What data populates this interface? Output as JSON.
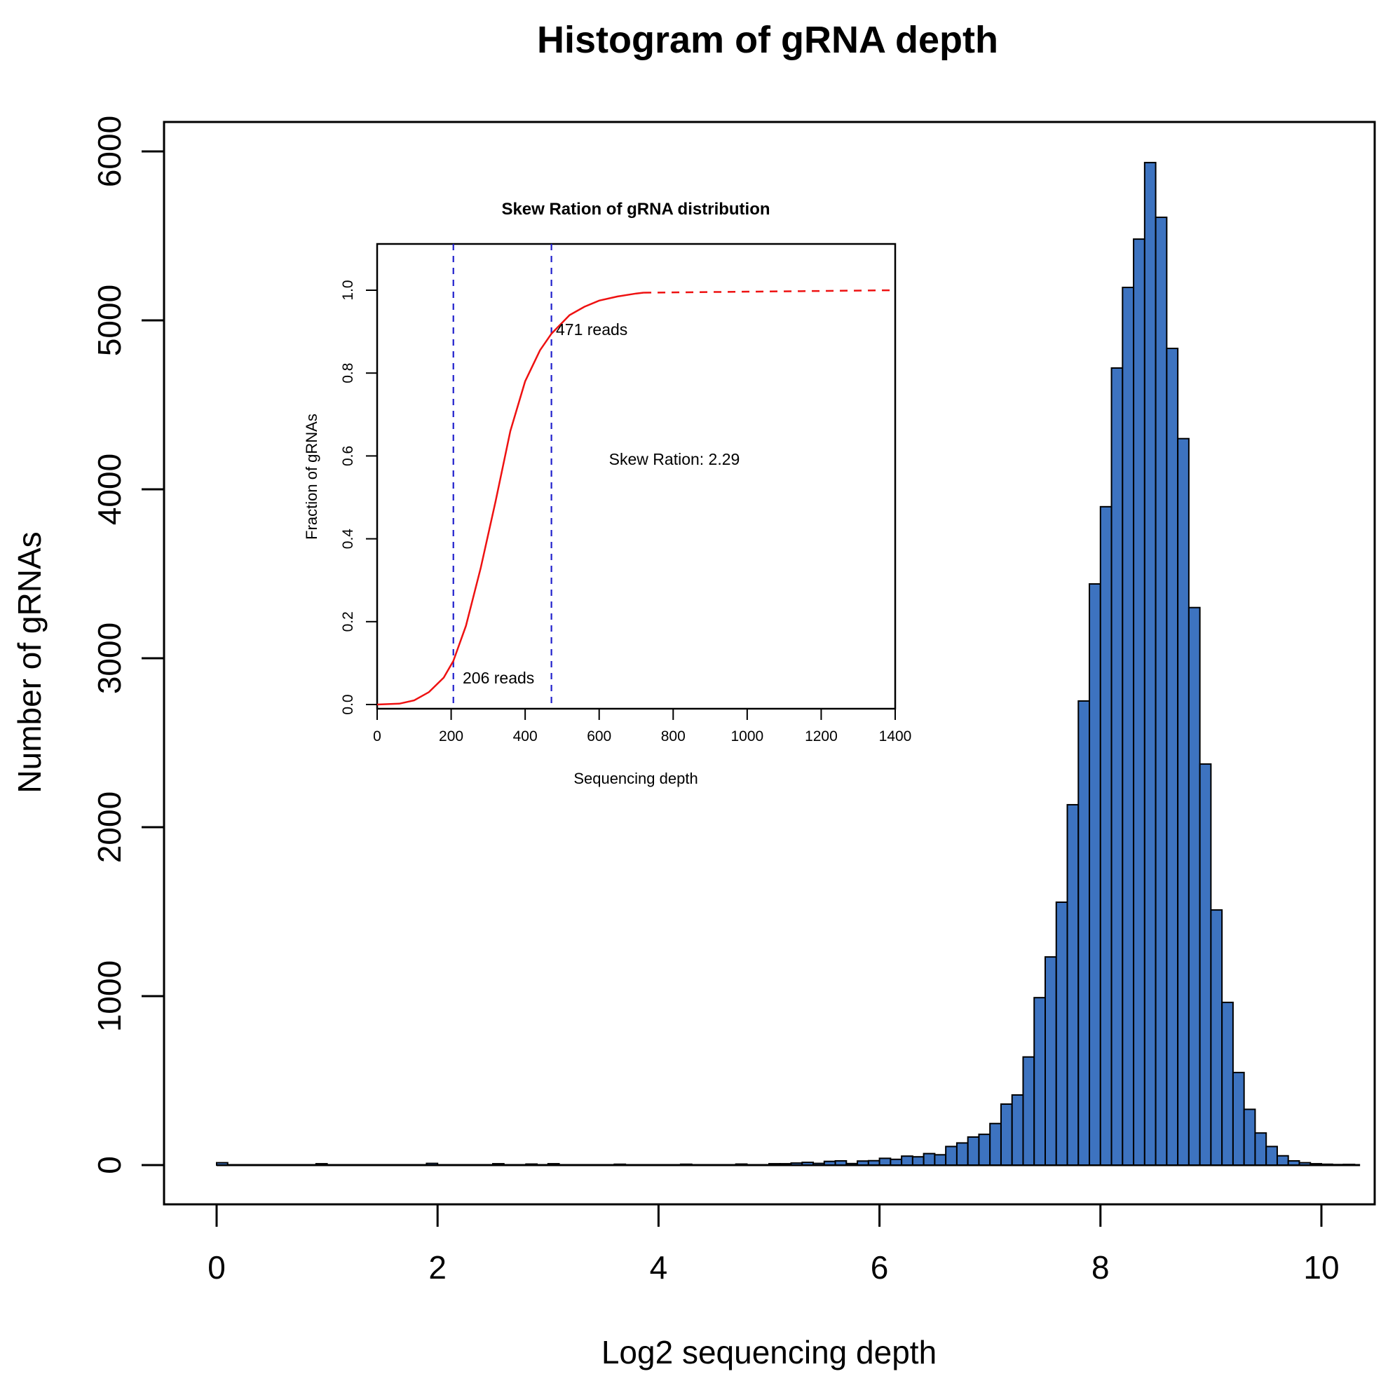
{
  "figure_title": "Histogram of gRNA depth",
  "chart_data": [
    {
      "id": "main_histogram",
      "type": "bar",
      "title": "Histogram of gRNA depth",
      "xlabel": "Log2 sequencing depth",
      "ylabel": "Number of gRNAs",
      "x_ticks": [
        0,
        2,
        4,
        6,
        8,
        10
      ],
      "y_ticks": [
        0,
        1000,
        2000,
        3000,
        4000,
        5000,
        6000
      ],
      "xlim": [
        -0.45,
        10.45
      ],
      "ylim": [
        0,
        6000
      ],
      "grid": "off",
      "legend": "none",
      "bin_width": 0.1,
      "bar_fill_color": "#3D73C0",
      "bar_border_color": "#000000",
      "baseline_extent": [
        0.0,
        10.35
      ],
      "bars": [
        {
          "x": 0.0,
          "count": 14
        },
        {
          "x": 0.9,
          "count": 8
        },
        {
          "x": 1.9,
          "count": 10
        },
        {
          "x": 2.5,
          "count": 8
        },
        {
          "x": 2.8,
          "count": 6
        },
        {
          "x": 3.0,
          "count": 8
        },
        {
          "x": 3.6,
          "count": 5
        },
        {
          "x": 4.2,
          "count": 5
        },
        {
          "x": 4.7,
          "count": 6
        },
        {
          "x": 5.0,
          "count": 8
        },
        {
          "x": 5.1,
          "count": 8
        },
        {
          "x": 5.2,
          "count": 12
        },
        {
          "x": 5.3,
          "count": 16
        },
        {
          "x": 5.4,
          "count": 10
        },
        {
          "x": 5.5,
          "count": 22
        },
        {
          "x": 5.6,
          "count": 25
        },
        {
          "x": 5.7,
          "count": 9
        },
        {
          "x": 5.8,
          "count": 24
        },
        {
          "x": 5.9,
          "count": 26
        },
        {
          "x": 6.0,
          "count": 40
        },
        {
          "x": 6.1,
          "count": 34
        },
        {
          "x": 6.2,
          "count": 53
        },
        {
          "x": 6.3,
          "count": 49
        },
        {
          "x": 6.4,
          "count": 68
        },
        {
          "x": 6.5,
          "count": 61
        },
        {
          "x": 6.6,
          "count": 110
        },
        {
          "x": 6.7,
          "count": 131
        },
        {
          "x": 6.8,
          "count": 166
        },
        {
          "x": 6.9,
          "count": 182
        },
        {
          "x": 7.0,
          "count": 246
        },
        {
          "x": 7.1,
          "count": 361
        },
        {
          "x": 7.2,
          "count": 415
        },
        {
          "x": 7.3,
          "count": 640
        },
        {
          "x": 7.4,
          "count": 991
        },
        {
          "x": 7.5,
          "count": 1232
        },
        {
          "x": 7.6,
          "count": 1556
        },
        {
          "x": 7.7,
          "count": 2133
        },
        {
          "x": 7.8,
          "count": 2747
        },
        {
          "x": 7.9,
          "count": 3440
        },
        {
          "x": 8.0,
          "count": 3897
        },
        {
          "x": 8.1,
          "count": 4718
        },
        {
          "x": 8.2,
          "count": 5195
        },
        {
          "x": 8.3,
          "count": 5481
        },
        {
          "x": 8.4,
          "count": 5934
        },
        {
          "x": 8.5,
          "count": 5610
        },
        {
          "x": 8.6,
          "count": 4834
        },
        {
          "x": 8.7,
          "count": 4300
        },
        {
          "x": 8.8,
          "count": 3300
        },
        {
          "x": 8.9,
          "count": 2374
        },
        {
          "x": 9.0,
          "count": 1510
        },
        {
          "x": 9.1,
          "count": 963
        },
        {
          "x": 9.2,
          "count": 548
        },
        {
          "x": 9.3,
          "count": 330
        },
        {
          "x": 9.4,
          "count": 190
        },
        {
          "x": 9.5,
          "count": 110
        },
        {
          "x": 9.6,
          "count": 55
        },
        {
          "x": 9.7,
          "count": 25
        },
        {
          "x": 9.8,
          "count": 14
        },
        {
          "x": 9.9,
          "count": 8
        },
        {
          "x": 10.0,
          "count": 5
        },
        {
          "x": 10.1,
          "count": 3
        },
        {
          "x": 10.2,
          "count": 4
        }
      ]
    },
    {
      "id": "inset_skew_ratio",
      "type": "line",
      "title": "Skew Ration of gRNA distribution",
      "xlabel": "Sequencing depth",
      "ylabel": "Fraction of gRNAs",
      "x_ticks": [
        0,
        200,
        400,
        600,
        800,
        1000,
        1200,
        1400
      ],
      "y_ticks": [
        "0.0",
        "0.2",
        "0.4",
        "0.6",
        "0.8",
        "1.0"
      ],
      "xlim": [
        0,
        1400
      ],
      "ylim": [
        0.0,
        1.0
      ],
      "grid": "off",
      "curve_color": "#EE1111",
      "vline_color": "#2020CC",
      "curve_solid_points": [
        [
          0,
          0.0
        ],
        [
          60,
          0.002
        ],
        [
          100,
          0.01
        ],
        [
          140,
          0.03
        ],
        [
          180,
          0.065
        ],
        [
          206,
          0.105
        ],
        [
          240,
          0.19
        ],
        [
          280,
          0.33
        ],
        [
          320,
          0.49
        ],
        [
          360,
          0.66
        ],
        [
          400,
          0.78
        ],
        [
          440,
          0.855
        ],
        [
          471,
          0.895
        ],
        [
          520,
          0.94
        ],
        [
          560,
          0.96
        ],
        [
          600,
          0.975
        ],
        [
          650,
          0.985
        ],
        [
          700,
          0.992
        ],
        [
          720,
          0.994
        ]
      ],
      "curve_dashed_tail": [
        [
          720,
          0.994
        ],
        [
          1400,
          1.0
        ]
      ],
      "vlines": [
        {
          "x": 206,
          "label": "206 reads"
        },
        {
          "x": 471,
          "label": "471 reads"
        }
      ],
      "annotations": {
        "reads_high": "471 reads",
        "reads_low": "206 reads",
        "skew": "Skew Ration: 2.29"
      }
    }
  ]
}
